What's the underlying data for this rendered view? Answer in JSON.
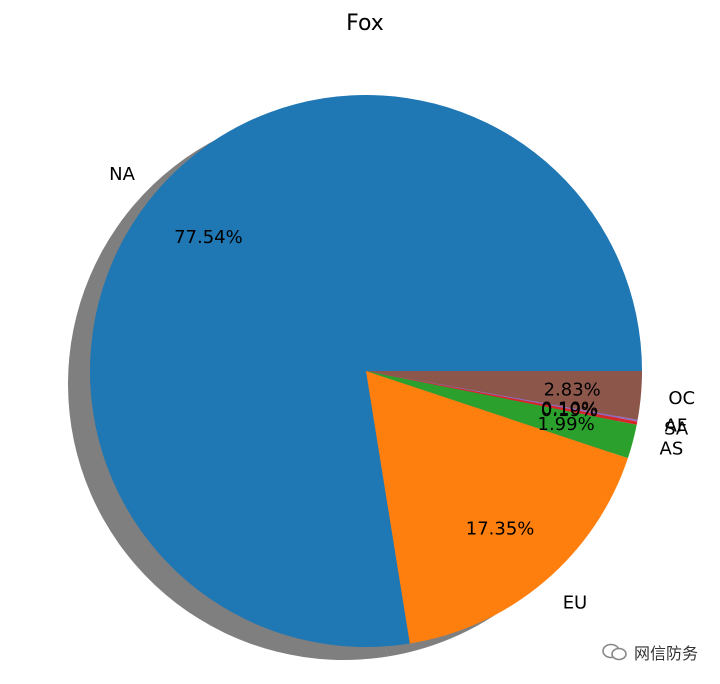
{
  "chart_data": {
    "type": "pie",
    "title": "Fox",
    "shadow": true,
    "slices": [
      {
        "label": "NA",
        "value": 77.54,
        "pct_label": "77.54%",
        "color": "#1f77b4"
      },
      {
        "label": "EU",
        "value": 17.35,
        "pct_label": "17.35%",
        "color": "#ff7f0e"
      },
      {
        "label": "AS",
        "value": 1.99,
        "pct_label": "1.99%",
        "color": "#2ca02c"
      },
      {
        "label": "SA",
        "value": 0.19,
        "pct_label": "0.19%",
        "color": "#d62728"
      },
      {
        "label": "AF",
        "value": 0.1,
        "pct_label": "0.10%",
        "color": "#9467bd"
      },
      {
        "label": "OC",
        "value": 2.83,
        "pct_label": "2.83%",
        "color": "#8c564b"
      }
    ]
  },
  "watermark": {
    "text": "网信防务"
  }
}
